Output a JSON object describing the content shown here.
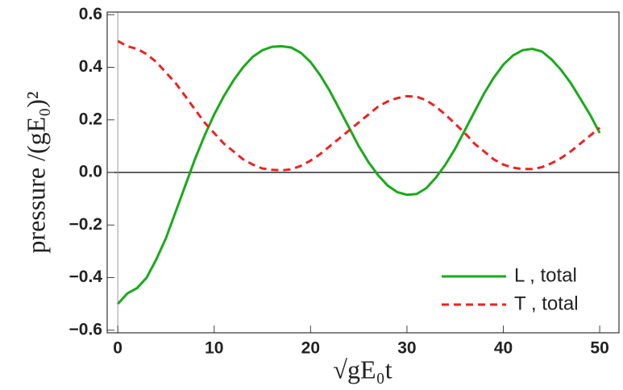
{
  "chart_data": {
    "type": "line",
    "xlabel": "√gE₀t",
    "ylabel": "pressure /(gE₀)²",
    "x": [
      0,
      1,
      2,
      3,
      4,
      5,
      6,
      7,
      8,
      9,
      10,
      11,
      12,
      13,
      14,
      15,
      16,
      17,
      18,
      19,
      20,
      21,
      22,
      23,
      24,
      25,
      26,
      27,
      28,
      29,
      30,
      31,
      32,
      33,
      34,
      35,
      36,
      37,
      38,
      39,
      40,
      41,
      42,
      43,
      44,
      45,
      46,
      47,
      48,
      49,
      50
    ],
    "series": [
      {
        "name": "L , total",
        "color": "#1aaa1a",
        "dash": "solid",
        "values": [
          -0.5,
          -0.46,
          -0.44,
          -0.4,
          -0.33,
          -0.25,
          -0.15,
          -0.05,
          0.05,
          0.14,
          0.22,
          0.29,
          0.35,
          0.4,
          0.44,
          0.465,
          0.478,
          0.48,
          0.475,
          0.455,
          0.42,
          0.37,
          0.31,
          0.24,
          0.17,
          0.1,
          0.04,
          -0.01,
          -0.05,
          -0.075,
          -0.085,
          -0.082,
          -0.06,
          -0.02,
          0.03,
          0.09,
          0.16,
          0.23,
          0.3,
          0.36,
          0.41,
          0.445,
          0.465,
          0.47,
          0.46,
          0.43,
          0.39,
          0.34,
          0.28,
          0.22,
          0.15
        ]
      },
      {
        "name": "T , total",
        "color": "#ee2222",
        "dash": "dashed",
        "values": [
          0.5,
          0.48,
          0.47,
          0.45,
          0.42,
          0.38,
          0.34,
          0.29,
          0.24,
          0.19,
          0.15,
          0.11,
          0.08,
          0.05,
          0.03,
          0.015,
          0.01,
          0.008,
          0.012,
          0.025,
          0.045,
          0.07,
          0.1,
          0.13,
          0.16,
          0.19,
          0.22,
          0.25,
          0.27,
          0.283,
          0.29,
          0.288,
          0.275,
          0.25,
          0.22,
          0.185,
          0.15,
          0.11,
          0.08,
          0.05,
          0.03,
          0.018,
          0.013,
          0.013,
          0.02,
          0.035,
          0.055,
          0.08,
          0.11,
          0.14,
          0.17
        ]
      }
    ],
    "xlim": [
      -1.1,
      52
    ],
    "xticks": [
      0,
      10,
      20,
      30,
      40,
      50
    ],
    "ylim": [
      -0.61,
      0.61
    ],
    "yticks": [
      {
        "value": -0.6,
        "label": "−0.6"
      },
      {
        "value": -0.4,
        "label": "−0.4"
      },
      {
        "value": -0.2,
        "label": "−0.2"
      },
      {
        "value": 0,
        "label": "0.0"
      },
      0.2,
      0.4,
      0.6
    ],
    "legend": "lower right"
  }
}
